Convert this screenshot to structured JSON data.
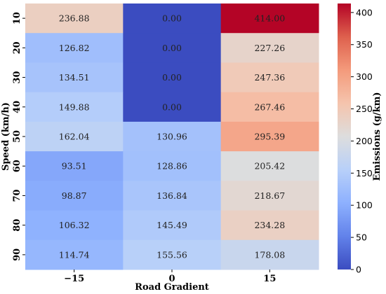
{
  "chart_data": {
    "type": "heatmap",
    "xlabel": "Road Gradient",
    "ylabel": "Speed (km/h)",
    "x_categories": [
      "−15",
      "0",
      "15"
    ],
    "y_categories": [
      "10",
      "20",
      "30",
      "40",
      "50",
      "60",
      "70",
      "80",
      "90"
    ],
    "values": [
      [
        236.88,
        0.0,
        414.0
      ],
      [
        126.82,
        0.0,
        227.26
      ],
      [
        134.51,
        0.0,
        247.36
      ],
      [
        149.88,
        0.0,
        267.46
      ],
      [
        162.04,
        130.96,
        295.39
      ],
      [
        93.51,
        128.86,
        205.42
      ],
      [
        98.87,
        136.84,
        218.67
      ],
      [
        106.32,
        145.49,
        234.28
      ],
      [
        114.74,
        155.56,
        178.08
      ]
    ],
    "value_labels": [
      [
        "236.88",
        "0.00",
        "414.00"
      ],
      [
        "126.82",
        "0.00",
        "227.26"
      ],
      [
        "134.51",
        "0.00",
        "247.36"
      ],
      [
        "149.88",
        "0.00",
        "267.46"
      ],
      [
        "162.04",
        "130.96",
        "295.39"
      ],
      [
        "93.51",
        "128.86",
        "205.42"
      ],
      [
        "98.87",
        "136.84",
        "218.67"
      ],
      [
        "106.32",
        "145.49",
        "234.28"
      ],
      [
        "114.74",
        "155.56",
        "178.08"
      ]
    ],
    "colorbar": {
      "label": "Emissions (g/km)",
      "range": [
        0,
        414
      ],
      "ticks": [
        0,
        50,
        100,
        150,
        200,
        250,
        300,
        350,
        400
      ],
      "colormap": "coolwarm"
    }
  }
}
